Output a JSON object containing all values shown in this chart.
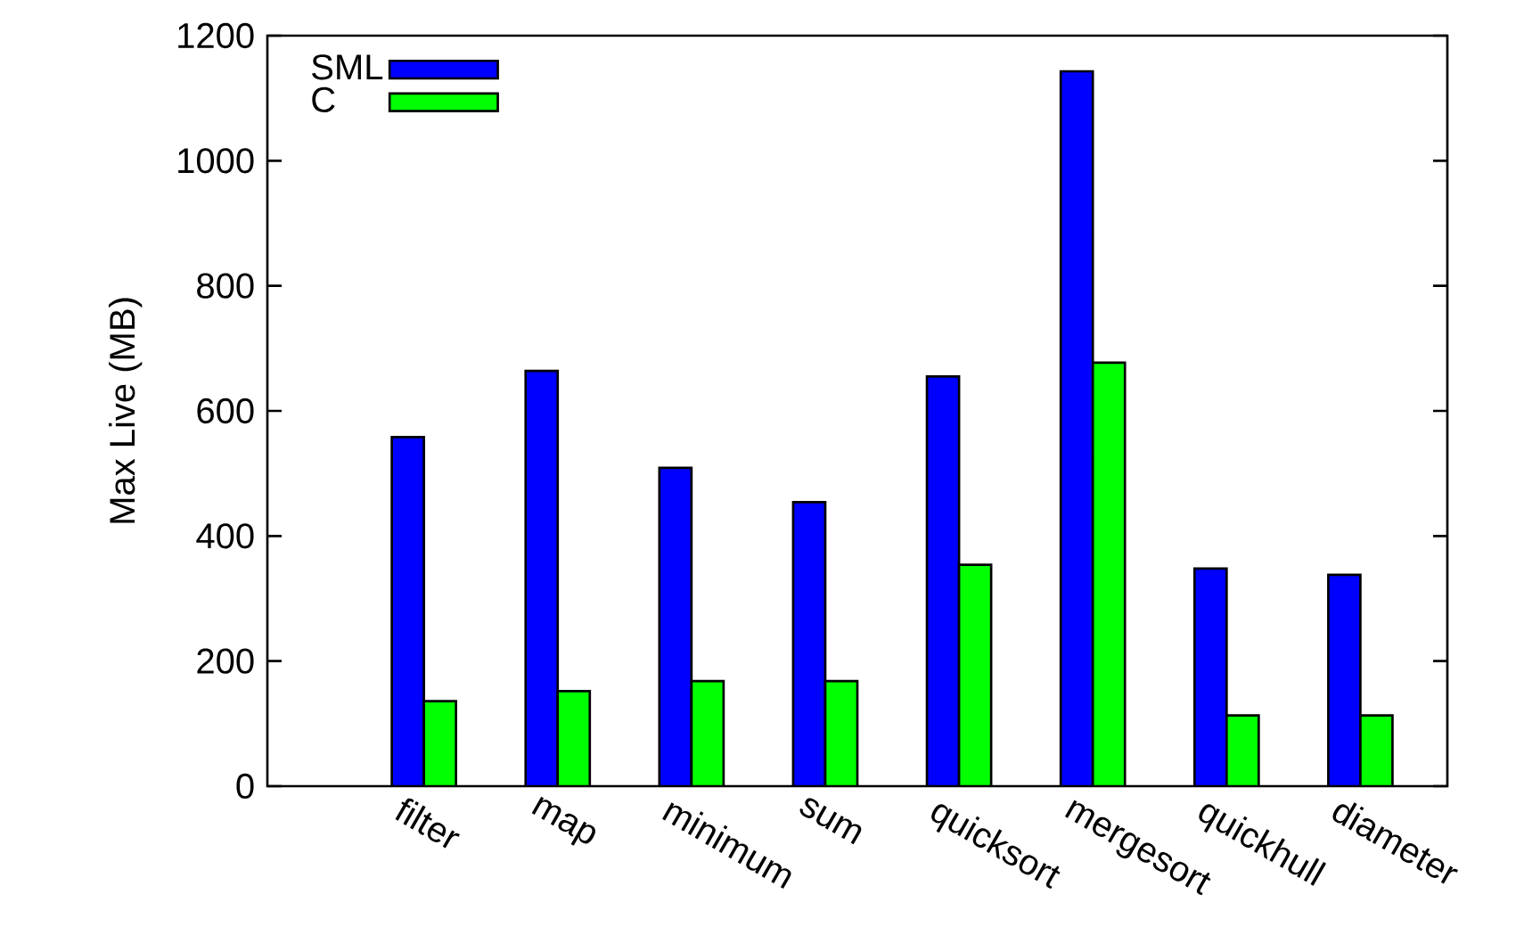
{
  "chart_data": {
    "type": "bar",
    "ylabel": "Max Live (MB)",
    "categories": [
      "filter",
      "map",
      "minimum",
      "sum",
      "quicksort",
      "mergesort",
      "quickhull",
      "diameter"
    ],
    "series": [
      {
        "name": "SML",
        "color": "#0000ff",
        "values": [
          558,
          664,
          509,
          454,
          655,
          1143,
          348,
          338
        ]
      },
      {
        "name": "C",
        "color": "#00ff00",
        "values": [
          136,
          152,
          168,
          168,
          354,
          677,
          113,
          113
        ]
      }
    ],
    "ylim": [
      0,
      1200
    ],
    "yticks": [
      0,
      200,
      400,
      600,
      800,
      1000,
      1200
    ],
    "legend": "top left",
    "grid": false
  }
}
